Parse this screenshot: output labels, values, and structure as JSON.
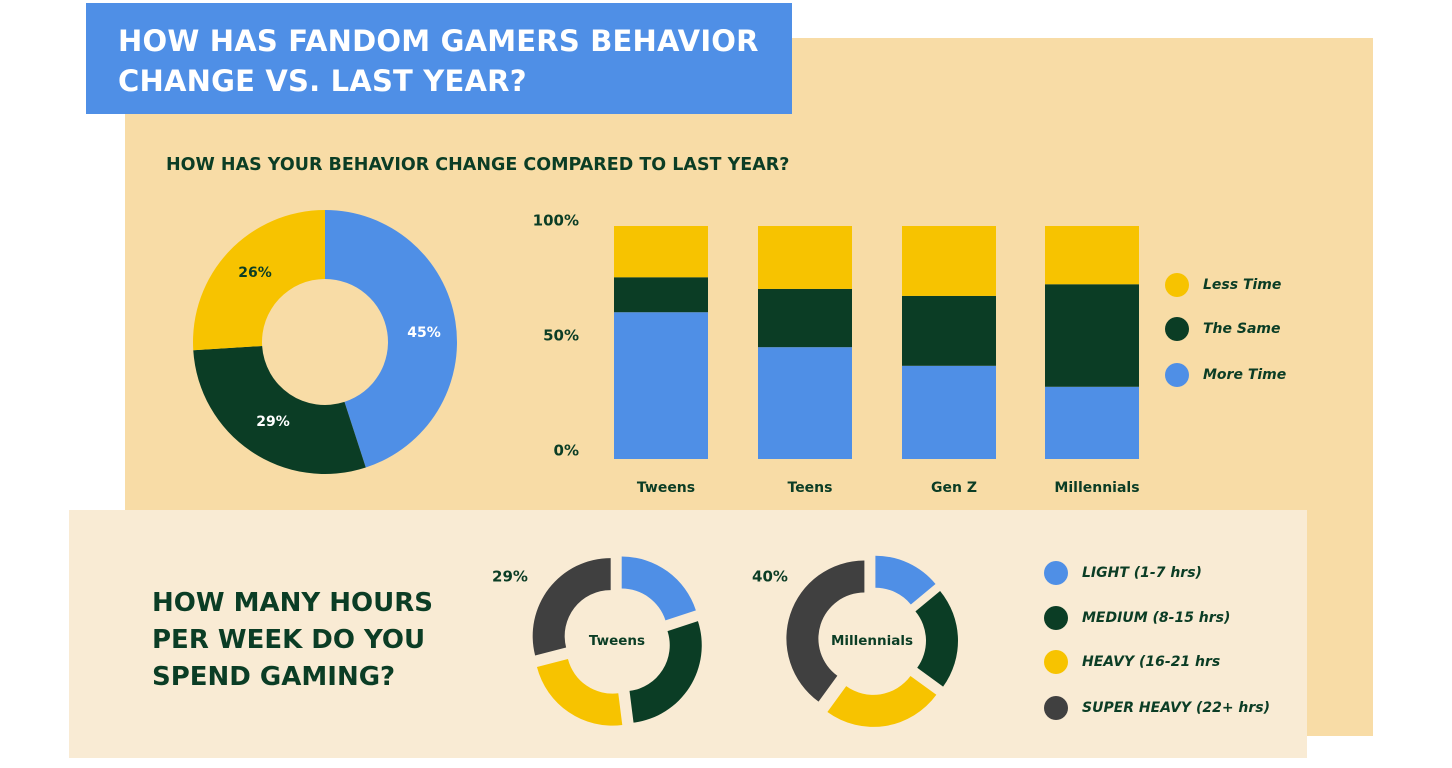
{
  "header": {
    "title_line1": "HOW HAS FANDOM GAMERS BEHAVIOR",
    "title_line2": "CHANGE VS. LAST YEAR?"
  },
  "behavior_section": {
    "subtitle": "HOW HAS YOUR BEHAVIOR CHANGE COMPARED TO LAST YEAR?"
  },
  "hours_section": {
    "title_line1": "HOW MANY HOURS",
    "title_line2": "PER WEEK DO YOU",
    "title_line3": "SPEND GAMING?"
  },
  "colors": {
    "blue": "#4f8fe6",
    "dark_green": "#0b3d25",
    "yellow": "#f7c300",
    "dark_gray": "#404040",
    "panel": "#f8dca6",
    "panel_light": "#f9ebd4"
  },
  "chart_data": [
    {
      "type": "pie",
      "variant": "donut",
      "slices": [
        {
          "label": "More Time",
          "value": 45,
          "value_label": "45%",
          "color": "#4f8fe6"
        },
        {
          "label": "The Same",
          "value": 29,
          "value_label": "29%",
          "color": "#0b3d25"
        },
        {
          "label": "Less Time",
          "value": 26,
          "value_label": "26%",
          "color": "#f7c300"
        }
      ]
    },
    {
      "type": "bar",
      "stacked": true,
      "categories": [
        "Tweens",
        "Teens",
        "Gen Z",
        "Millennials"
      ],
      "series": [
        {
          "name": "More Time",
          "color": "#4f8fe6",
          "values": [
            63,
            48,
            40,
            31
          ]
        },
        {
          "name": "The Same",
          "color": "#0b3d25",
          "values": [
            15,
            25,
            30,
            44
          ]
        },
        {
          "name": "Less Time",
          "color": "#f7c300",
          "values": [
            22,
            27,
            30,
            25
          ]
        }
      ],
      "yticks": [
        "0%",
        "50%",
        "100%"
      ],
      "ylim": [
        0,
        100
      ],
      "legend": "right",
      "grid": false
    },
    {
      "type": "pie",
      "variant": "exploded-donut",
      "center_label": "Tweens",
      "slices": [
        {
          "label": "LIGHT (1-7 hrs)",
          "value": 20,
          "color": "#4f8fe6"
        },
        {
          "label": "MEDIUM (8-15 hrs)",
          "value": 28,
          "color": "#0b3d25"
        },
        {
          "label": "HEAVY (16-21 hrs",
          "value": 23,
          "color": "#f7c300"
        },
        {
          "label": "SUPER HEAVY (22+ hrs)",
          "value": 29,
          "value_label": "29%",
          "color": "#404040"
        }
      ]
    },
    {
      "type": "pie",
      "variant": "exploded-donut",
      "center_label": "Millennials",
      "slices": [
        {
          "label": "LIGHT (1-7 hrs)",
          "value": 14,
          "color": "#4f8fe6"
        },
        {
          "label": "MEDIUM (8-15 hrs)",
          "value": 21,
          "color": "#0b3d25"
        },
        {
          "label": "HEAVY (16-21 hrs",
          "value": 25,
          "color": "#f7c300"
        },
        {
          "label": "SUPER HEAVY (22+ hrs)",
          "value": 40,
          "value_label": "40%",
          "color": "#404040"
        }
      ]
    }
  ],
  "hours_legend": [
    {
      "label": "LIGHT (1-7 hrs)",
      "color": "#4f8fe6"
    },
    {
      "label": "MEDIUM (8-15 hrs)",
      "color": "#0b3d25"
    },
    {
      "label": "HEAVY (16-21 hrs",
      "color": "#f7c300"
    },
    {
      "label": "SUPER HEAVY (22+ hrs)",
      "color": "#404040"
    }
  ]
}
